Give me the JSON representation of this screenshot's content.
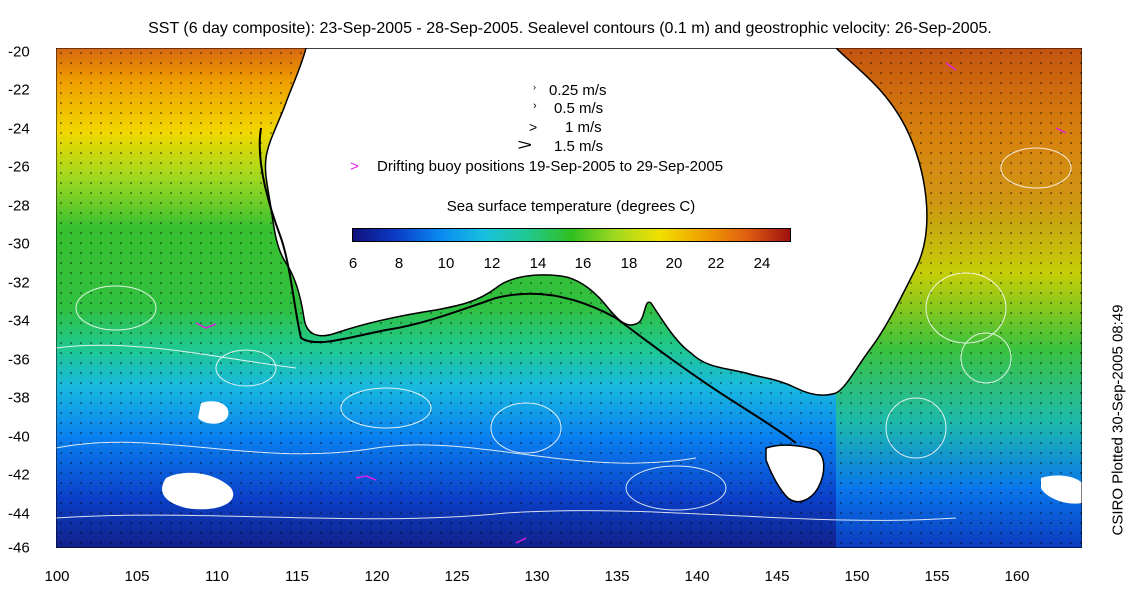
{
  "title": "SST (6 day composite): 23-Sep-2005 - 28-Sep-2005. Sealevel contours (0.1 m) and geostrophic velocity: 26-Sep-2005.",
  "credit": "CSIRO Plotted 30-Sep-2005 08:49",
  "y_ticks": [
    "-20",
    "-22",
    "-24",
    "-26",
    "-28",
    "-30",
    "-32",
    "-34",
    "-36",
    "-38",
    "-40",
    "-42",
    "-44",
    "-46"
  ],
  "x_ticks": [
    "100",
    "105",
    "110",
    "115",
    "120",
    "125",
    "130",
    "135",
    "140",
    "145",
    "150",
    "155",
    "160"
  ],
  "legend": {
    "v1": "0.25 m/s",
    "v2": "0.5 m/s",
    "v3": "1 m/s",
    "v4": "1.5 m/s",
    "buoy": "Drifting buoy positions 19-Sep-2005 to 29-Sep-2005",
    "buoy_symbol": ">"
  },
  "colorbar": {
    "title": "Sea surface temperature (degrees C)",
    "ticks": [
      "6",
      "8",
      "10",
      "12",
      "14",
      "16",
      "18",
      "20",
      "22",
      "24"
    ],
    "colors": [
      "#10107a",
      "#0a3cc8",
      "#0a8af0",
      "#18c0e0",
      "#20c890",
      "#30c020",
      "#a0d820",
      "#f0e000",
      "#f0a000",
      "#e06010",
      "#a01010"
    ]
  },
  "colors": {
    "land": "#ffffff",
    "coastline": "#000000",
    "contour": "#ffffff",
    "buoy": "#e020e0",
    "vectors": "#000000"
  }
}
